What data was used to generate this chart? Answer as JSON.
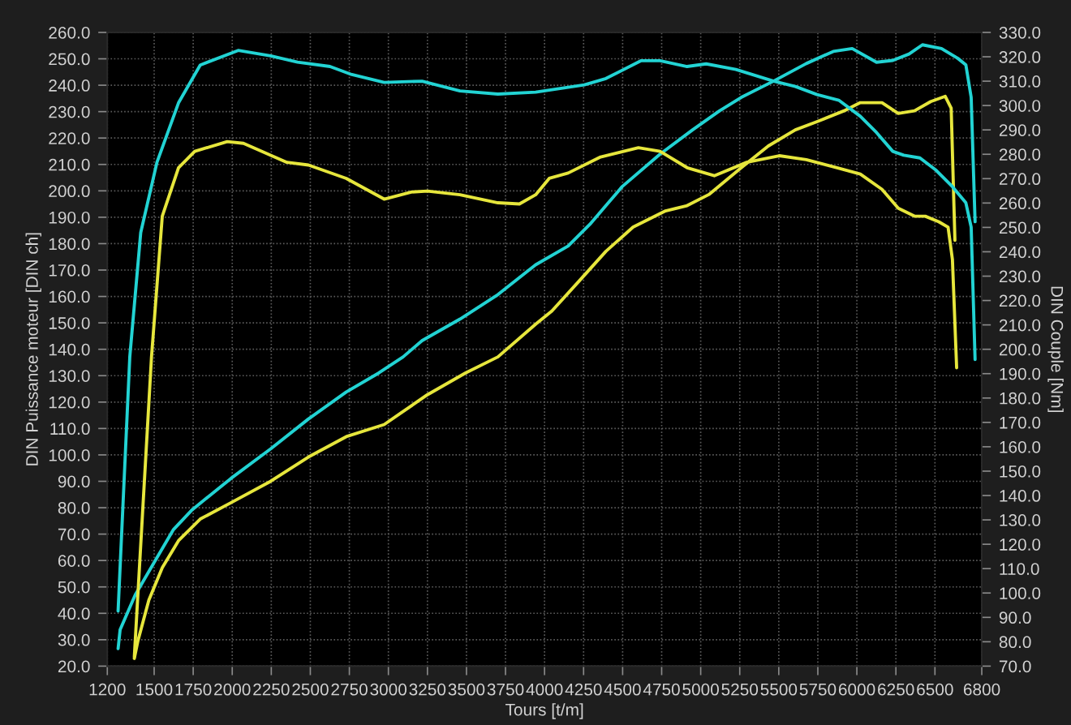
{
  "chart_data": {
    "type": "line",
    "xlabel": "Tours [t/m]",
    "ylabel": "DIN Puissance moteur [DIN ch]",
    "y2label": "DIN Couple [Nm]",
    "xlim": [
      1200,
      6800
    ],
    "xticks": [
      1200,
      1500,
      1750,
      2000,
      2250,
      2500,
      2750,
      3000,
      3250,
      3500,
      3750,
      4000,
      4250,
      4500,
      4750,
      5000,
      5250,
      5500,
      5750,
      6000,
      6250,
      6500,
      6800
    ],
    "ylim": [
      20,
      260
    ],
    "yticks": [
      {
        "value": 20,
        "label": "20.0"
      },
      {
        "value": 30,
        "label": "30.0"
      },
      {
        "value": 40,
        "label": "40.0"
      },
      {
        "value": 50,
        "label": "50.0"
      },
      {
        "value": 60,
        "label": "60.0"
      },
      {
        "value": 70,
        "label": "70.0"
      },
      {
        "value": 80,
        "label": "80.0"
      },
      {
        "value": 90,
        "label": "90.0"
      },
      {
        "value": 100,
        "label": "100.0"
      },
      {
        "value": 110,
        "label": "110.0"
      },
      {
        "value": 120,
        "label": "120.0"
      },
      {
        "value": 130,
        "label": "130.0"
      },
      {
        "value": 140,
        "label": "140.0"
      },
      {
        "value": 150,
        "label": "150.0"
      },
      {
        "value": 160,
        "label": "160.0"
      },
      {
        "value": 170,
        "label": "170.0"
      },
      {
        "value": 180,
        "label": "180.0"
      },
      {
        "value": 190,
        "label": "190.0"
      },
      {
        "value": 200,
        "label": "200.0"
      },
      {
        "value": 210,
        "label": "210.0"
      },
      {
        "value": 220,
        "label": "220.0"
      },
      {
        "value": 230,
        "label": "230.0"
      },
      {
        "value": 240,
        "label": "240.0"
      },
      {
        "value": 250,
        "label": "250.0"
      },
      {
        "value": 260,
        "label": "260.0"
      }
    ],
    "y2lim": [
      70,
      330
    ],
    "y2ticks": [
      {
        "value": 70,
        "label": "70.0"
      },
      {
        "value": 80,
        "label": "80.0"
      },
      {
        "value": 90,
        "label": "90.0"
      },
      {
        "value": 100,
        "label": "100.0"
      },
      {
        "value": 110,
        "label": "110.0"
      },
      {
        "value": 120,
        "label": "120.0"
      },
      {
        "value": 130,
        "label": "130.0"
      },
      {
        "value": 140,
        "label": "140.0"
      },
      {
        "value": 150,
        "label": "150.0"
      },
      {
        "value": 160,
        "label": "160.0"
      },
      {
        "value": 170,
        "label": "170.0"
      },
      {
        "value": 180,
        "label": "180.0"
      },
      {
        "value": 190,
        "label": "190.0"
      },
      {
        "value": 200,
        "label": "200.0"
      },
      {
        "value": 210,
        "label": "210.0"
      },
      {
        "value": 220,
        "label": "220.0"
      },
      {
        "value": 230,
        "label": "230.0"
      },
      {
        "value": 240,
        "label": "240.0"
      },
      {
        "value": 250,
        "label": "250.0"
      },
      {
        "value": 260,
        "label": "260.0"
      },
      {
        "value": 270,
        "label": "270.0"
      },
      {
        "value": 280,
        "label": "280.0"
      },
      {
        "value": 290,
        "label": "290.0"
      },
      {
        "value": 300,
        "label": "300.0"
      },
      {
        "value": 310,
        "label": "310.0"
      },
      {
        "value": 320,
        "label": "320.0"
      },
      {
        "value": 330,
        "label": "330.0"
      }
    ],
    "grid": true,
    "line_style": "solid",
    "series": [
      {
        "color": "#22d3d3",
        "x": [
          1269,
          1282,
          1379,
          1500,
          1622,
          1743,
          1992,
          2246,
          2488,
          2730,
          2938,
          3094,
          3216,
          3458,
          3701,
          3943,
          4151,
          4290,
          4497,
          4740,
          4948,
          5121,
          5260,
          5468,
          5676,
          5849,
          5970,
          6126,
          6230,
          6334,
          6420,
          6542,
          6646,
          6698,
          6732,
          6757
        ],
        "values": [
          26.6,
          33.8,
          47.0,
          59.3,
          71.6,
          79.2,
          91.1,
          102.3,
          113.6,
          123.8,
          131.0,
          137.1,
          143.3,
          151.4,
          160.7,
          172.0,
          179.1,
          187.3,
          201.6,
          213.9,
          223.1,
          230.3,
          235.4,
          241.6,
          248.2,
          252.8,
          253.9,
          248.7,
          249.4,
          251.8,
          255.3,
          253.9,
          250.2,
          247.7,
          235.4,
          188.3
        ]
      },
      {
        "color": "#22d3d3",
        "axis": "y2",
        "x": [
          1269,
          1344,
          1414,
          1518,
          1656,
          1795,
          2038,
          2246,
          2418,
          2626,
          2766,
          2973,
          3216,
          3458,
          3701,
          3943,
          4255,
          4393,
          4619,
          4740,
          4913,
          5035,
          5225,
          5468,
          5606,
          5745,
          5884,
          6022,
          6126,
          6230,
          6300,
          6404,
          6508,
          6612,
          6698,
          6732,
          6757
        ],
        "values": [
          92.6,
          196.9,
          247.9,
          276.7,
          301.1,
          316.6,
          322.6,
          320.4,
          317.8,
          316.0,
          312.7,
          309.5,
          310.0,
          306.0,
          304.7,
          305.5,
          308.5,
          311.1,
          318.4,
          318.4,
          316.0,
          317.1,
          314.8,
          310.0,
          307.8,
          304.5,
          302.2,
          295.6,
          288.9,
          281.2,
          279.6,
          278.5,
          273.4,
          266.7,
          260.1,
          250.1,
          195.8
        ]
      },
      {
        "color": "#e6e63c",
        "x": [
          1373,
          1396,
          1466,
          1552,
          1656,
          1795,
          1992,
          2246,
          2488,
          2730,
          2973,
          3250,
          3493,
          3701,
          3943,
          4047,
          4221,
          4393,
          4567,
          4775,
          4913,
          5052,
          5260,
          5433,
          5606,
          5745,
          5918,
          6022,
          6161,
          6265,
          6369,
          6473,
          6566,
          6604,
          6628
        ],
        "values": [
          22.9,
          29.6,
          45.0,
          57.3,
          67.5,
          75.7,
          81.9,
          90.0,
          99.2,
          106.9,
          111.5,
          122.8,
          131.0,
          137.1,
          149.5,
          154.5,
          165.8,
          177.1,
          186.3,
          192.4,
          194.4,
          198.6,
          208.8,
          217.0,
          223.1,
          226.2,
          230.3,
          233.4,
          233.4,
          229.3,
          230.3,
          233.8,
          235.8,
          231.3,
          181.3
        ]
      },
      {
        "color": "#e6e63c",
        "axis": "y2",
        "x": [
          1373,
          1483,
          1552,
          1656,
          1760,
          1968,
          2072,
          2350,
          2488,
          2730,
          2973,
          3146,
          3250,
          3458,
          3701,
          3839,
          3943,
          4030,
          4151,
          4359,
          4601,
          4740,
          4913,
          5087,
          5295,
          5503,
          5676,
          5849,
          6022,
          6161,
          6265,
          6369,
          6438,
          6525,
          6584,
          6612,
          6639
        ],
        "values": [
          73.8,
          196.9,
          254.6,
          274.5,
          281.2,
          285.2,
          284.5,
          276.7,
          275.6,
          270.1,
          261.6,
          264.5,
          264.9,
          263.4,
          260.1,
          259.6,
          263.4,
          270.1,
          272.3,
          278.9,
          282.7,
          281.2,
          274.5,
          271.2,
          276.7,
          279.4,
          277.8,
          274.9,
          271.9,
          265.6,
          257.9,
          254.6,
          254.6,
          252.3,
          250.1,
          236.8,
          192.4
        ]
      }
    ]
  }
}
